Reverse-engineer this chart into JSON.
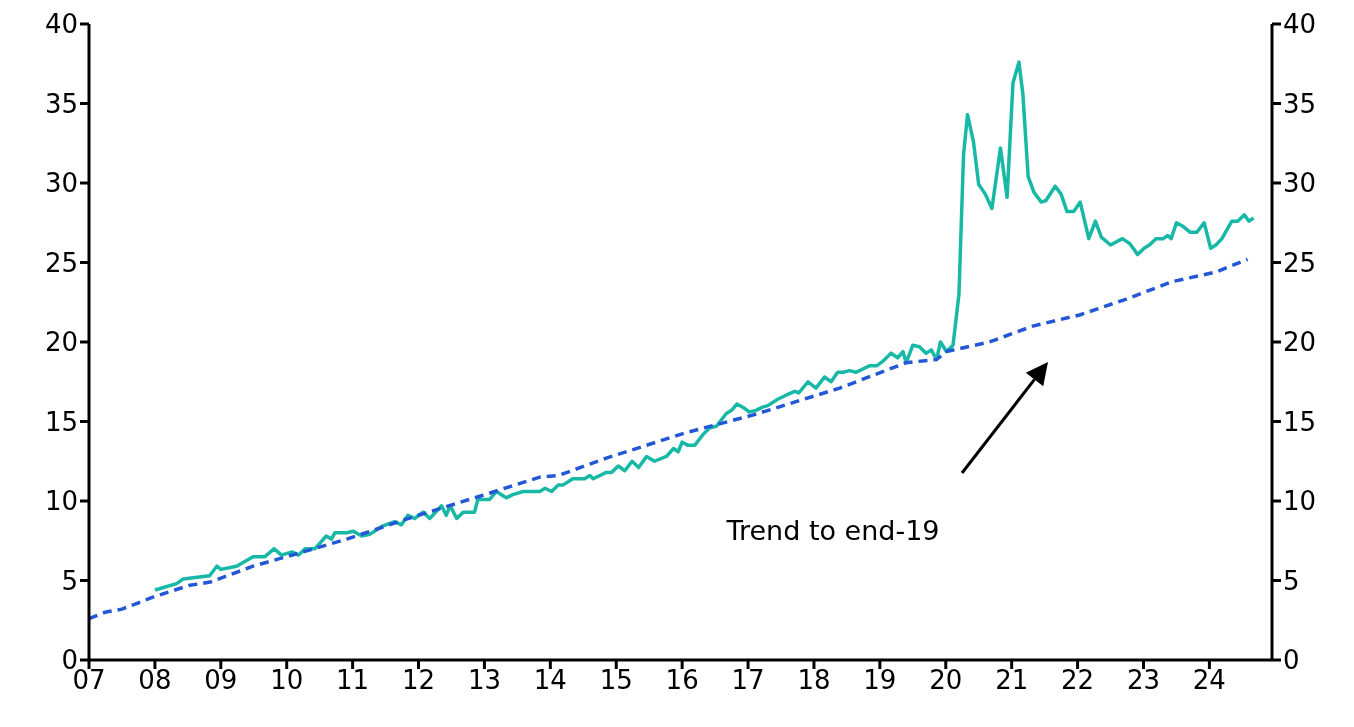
{
  "chart_data": {
    "type": "line",
    "xlim": [
      2007,
      2024.95
    ],
    "xticks": [
      {
        "value": 2007,
        "label": "07"
      },
      {
        "value": 2008,
        "label": "08"
      },
      {
        "value": 2009,
        "label": "09"
      },
      {
        "value": 2010,
        "label": "10"
      },
      {
        "value": 2011,
        "label": "11"
      },
      {
        "value": 2012,
        "label": "12"
      },
      {
        "value": 2013,
        "label": "13"
      },
      {
        "value": 2014,
        "label": "14"
      },
      {
        "value": 2015,
        "label": "15"
      },
      {
        "value": 2016,
        "label": "16"
      },
      {
        "value": 2017,
        "label": "17"
      },
      {
        "value": 2018,
        "label": "18"
      },
      {
        "value": 2019,
        "label": "19"
      },
      {
        "value": 2020,
        "label": "20"
      },
      {
        "value": 2021,
        "label": "21"
      },
      {
        "value": 2022,
        "label": "22"
      },
      {
        "value": 2023,
        "label": "23"
      },
      {
        "value": 2024,
        "label": "24"
      }
    ],
    "ylim": [
      0,
      40
    ],
    "yticks": [
      0,
      5,
      10,
      15,
      20,
      25,
      30,
      35,
      40
    ],
    "y2lim": [
      0,
      40
    ],
    "y2ticks": [
      0,
      5,
      10,
      15,
      20,
      25,
      30,
      35,
      40
    ],
    "marker": "none",
    "series": [
      {
        "color": "#18b8a6",
        "line_style": "solid",
        "x": [
          2008.0,
          2008.33,
          2008.43,
          2008.83,
          2008.94,
          2009.0,
          2009.24,
          2009.49,
          2009.67,
          2009.81,
          2009.92,
          2010.08,
          2010.18,
          2010.28,
          2010.43,
          2010.6,
          2010.68,
          2010.73,
          2010.91,
          2011.01,
          2011.14,
          2011.26,
          2011.44,
          2011.64,
          2011.74,
          2011.84,
          2011.94,
          2012.07,
          2012.17,
          2012.35,
          2012.42,
          2012.48,
          2012.58,
          2012.68,
          2012.85,
          2012.9,
          2013.08,
          2013.18,
          2013.33,
          2013.43,
          2013.59,
          2013.84,
          2013.92,
          2014.02,
          2014.12,
          2014.19,
          2014.34,
          2014.52,
          2014.6,
          2014.65,
          2014.85,
          2014.93,
          2015.03,
          2015.13,
          2015.24,
          2015.34,
          2015.46,
          2015.58,
          2015.76,
          2015.87,
          2015.94,
          2016.0,
          2016.09,
          2016.19,
          2016.32,
          2016.42,
          2016.52,
          2016.67,
          2016.75,
          2016.83,
          2016.92,
          2017.02,
          2017.12,
          2017.22,
          2017.3,
          2017.45,
          2017.6,
          2017.71,
          2017.77,
          2017.91,
          2018.03,
          2018.16,
          2018.26,
          2018.36,
          2018.44,
          2018.54,
          2018.64,
          2018.84,
          2018.95,
          2019.05,
          2019.17,
          2019.27,
          2019.35,
          2019.4,
          2019.5,
          2019.6,
          2019.7,
          2019.78,
          2019.86,
          2019.92,
          2020.01,
          2020.11,
          2020.2,
          2020.27,
          2020.33,
          2020.42,
          2020.5,
          2020.6,
          2020.7,
          2020.83,
          2020.93,
          2021.02,
          2021.11,
          2021.17,
          2021.25,
          2021.34,
          2021.45,
          2021.52,
          2021.66,
          2021.75,
          2021.84,
          2021.94,
          2022.04,
          2022.17,
          2022.27,
          2022.36,
          2022.5,
          2022.68,
          2022.79,
          2022.86,
          2022.91,
          2023.01,
          2023.09,
          2023.19,
          2023.3,
          2023.37,
          2023.42,
          2023.5,
          2023.59,
          2023.71,
          2023.81,
          2023.92,
          2024.02,
          2024.1,
          2024.19,
          2024.34,
          2024.43,
          2024.53,
          2024.6,
          2024.67
        ],
        "values": [
          4.4,
          4.8,
          5.1,
          5.3,
          5.9,
          5.7,
          5.9,
          6.5,
          6.5,
          7.0,
          6.6,
          6.8,
          6.6,
          7.0,
          7.0,
          7.8,
          7.6,
          8.0,
          8.0,
          8.1,
          7.8,
          7.9,
          8.4,
          8.7,
          8.5,
          9.1,
          8.9,
          9.3,
          8.9,
          9.7,
          9.1,
          9.7,
          8.9,
          9.3,
          9.3,
          10.1,
          10.1,
          10.6,
          10.2,
          10.4,
          10.6,
          10.6,
          10.8,
          10.6,
          11.0,
          11.0,
          11.4,
          11.4,
          11.6,
          11.4,
          11.8,
          11.8,
          12.2,
          11.9,
          12.5,
          12.1,
          12.8,
          12.5,
          12.8,
          13.3,
          13.1,
          13.7,
          13.5,
          13.5,
          14.2,
          14.6,
          14.7,
          15.5,
          15.7,
          16.1,
          15.9,
          15.6,
          15.7,
          15.9,
          16.0,
          16.4,
          16.7,
          16.9,
          16.8,
          17.5,
          17.1,
          17.8,
          17.5,
          18.1,
          18.1,
          18.2,
          18.1,
          18.5,
          18.5,
          18.8,
          19.3,
          19.0,
          19.4,
          18.7,
          19.8,
          19.7,
          19.3,
          19.5,
          18.9,
          20.0,
          19.4,
          19.8,
          23.0,
          31.8,
          34.3,
          32.6,
          29.9,
          29.3,
          28.4,
          32.2,
          29.1,
          36.3,
          37.6,
          35.6,
          30.4,
          29.4,
          28.8,
          28.9,
          29.8,
          29.3,
          28.2,
          28.2,
          28.8,
          26.5,
          27.6,
          26.6,
          26.1,
          26.5,
          26.2,
          25.8,
          25.5,
          25.9,
          26.1,
          26.5,
          26.5,
          26.7,
          26.5,
          27.5,
          27.3,
          26.9,
          26.9,
          27.5,
          25.9,
          26.1,
          26.5,
          27.6,
          27.6,
          28.0,
          27.6,
          27.8
        ]
      },
      {
        "color": "#2457d6",
        "line_style": "dashed",
        "x": [
          2007.0,
          2007.24,
          2007.5,
          2007.75,
          2008.0,
          2008.53,
          2008.84,
          2009.49,
          2010.0,
          2010.91,
          2011.92,
          2012.93,
          2013.84,
          2014.12,
          2014.85,
          2016.06,
          2017.07,
          2018.39,
          2019.4,
          2019.86,
          2020.01,
          2020.66,
          2021.32,
          2022.03,
          2022.74,
          2023.44,
          2024.1,
          2024.58
        ],
        "values": [
          2.6,
          3.0,
          3.2,
          3.6,
          4.0,
          4.7,
          4.9,
          5.9,
          6.5,
          7.6,
          9.0,
          10.3,
          11.5,
          11.6,
          12.7,
          14.3,
          15.4,
          17.1,
          18.7,
          18.9,
          19.4,
          20.0,
          21.0,
          21.7,
          22.7,
          23.8,
          24.4,
          25.2
        ]
      }
    ],
    "annotations": [
      "Trend to end-19"
    ]
  }
}
